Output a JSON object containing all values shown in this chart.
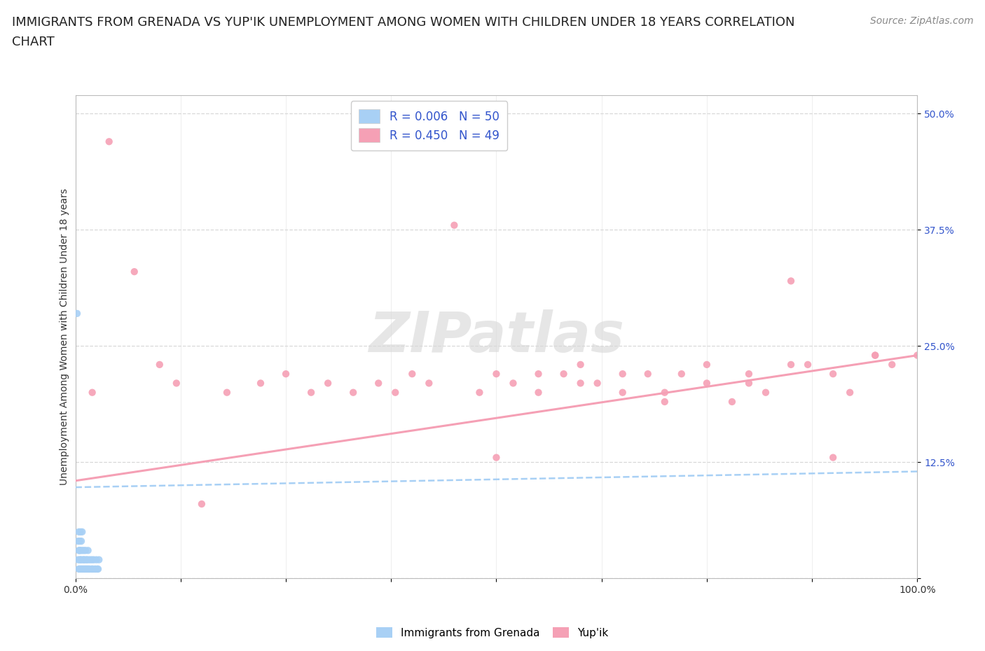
{
  "title_line1": "IMMIGRANTS FROM GRENADA VS YUP'IK UNEMPLOYMENT AMONG WOMEN WITH CHILDREN UNDER 18 YEARS CORRELATION",
  "title_line2": "CHART",
  "source": "Source: ZipAtlas.com",
  "ylabel": "Unemployment Among Women with Children Under 18 years",
  "xlim": [
    0.0,
    1.0
  ],
  "ylim": [
    0.0,
    0.52
  ],
  "yticks": [
    0.0,
    0.125,
    0.25,
    0.375,
    0.5
  ],
  "ytick_labels": [
    "",
    "12.5%",
    "25.0%",
    "37.5%",
    "50.0%"
  ],
  "xticks": [
    0.0,
    0.125,
    0.25,
    0.375,
    0.5,
    0.625,
    0.75,
    0.875,
    1.0
  ],
  "xtick_labels": [
    "0.0%",
    "",
    "",
    "",
    "",
    "",
    "",
    "",
    "100.0%"
  ],
  "blue_color": "#A8D0F5",
  "pink_color": "#F5A0B5",
  "legend_R1": "R = 0.006",
  "legend_N1": "N = 50",
  "legend_R2": "R = 0.450",
  "legend_N2": "N = 49",
  "watermark": "ZIPatlas",
  "background_color": "#ffffff",
  "grid_color": "#d8d8d8",
  "blue_scatter_x": [
    0.002,
    0.003,
    0.003,
    0.004,
    0.004,
    0.004,
    0.005,
    0.005,
    0.005,
    0.005,
    0.006,
    0.006,
    0.006,
    0.006,
    0.007,
    0.007,
    0.007,
    0.008,
    0.008,
    0.008,
    0.009,
    0.009,
    0.01,
    0.01,
    0.01,
    0.011,
    0.011,
    0.012,
    0.012,
    0.013,
    0.013,
    0.014,
    0.014,
    0.015,
    0.015,
    0.016,
    0.016,
    0.017,
    0.018,
    0.019,
    0.02,
    0.02,
    0.021,
    0.022,
    0.023,
    0.024,
    0.025,
    0.026,
    0.027,
    0.028
  ],
  "blue_scatter_y": [
    0.285,
    0.02,
    0.04,
    0.01,
    0.03,
    0.05,
    0.01,
    0.02,
    0.03,
    0.04,
    0.01,
    0.02,
    0.03,
    0.05,
    0.01,
    0.02,
    0.04,
    0.01,
    0.03,
    0.05,
    0.01,
    0.02,
    0.01,
    0.02,
    0.03,
    0.01,
    0.02,
    0.01,
    0.03,
    0.01,
    0.02,
    0.01,
    0.02,
    0.01,
    0.03,
    0.01,
    0.02,
    0.01,
    0.02,
    0.01,
    0.01,
    0.02,
    0.01,
    0.02,
    0.01,
    0.01,
    0.02,
    0.01,
    0.01,
    0.02
  ],
  "pink_scatter_x": [
    0.02,
    0.04,
    0.07,
    0.1,
    0.12,
    0.15,
    0.18,
    0.22,
    0.25,
    0.28,
    0.3,
    0.33,
    0.36,
    0.38,
    0.4,
    0.42,
    0.45,
    0.48,
    0.5,
    0.52,
    0.55,
    0.58,
    0.6,
    0.62,
    0.65,
    0.68,
    0.7,
    0.72,
    0.75,
    0.78,
    0.8,
    0.82,
    0.85,
    0.87,
    0.9,
    0.92,
    0.95,
    0.97,
    1.0,
    0.5,
    0.55,
    0.6,
    0.65,
    0.7,
    0.75,
    0.8,
    0.85,
    0.9,
    0.95
  ],
  "pink_scatter_y": [
    0.2,
    0.47,
    0.33,
    0.23,
    0.21,
    0.08,
    0.2,
    0.21,
    0.22,
    0.2,
    0.21,
    0.2,
    0.21,
    0.2,
    0.22,
    0.21,
    0.38,
    0.2,
    0.13,
    0.21,
    0.2,
    0.22,
    0.23,
    0.21,
    0.2,
    0.22,
    0.19,
    0.22,
    0.21,
    0.19,
    0.22,
    0.2,
    0.32,
    0.23,
    0.22,
    0.2,
    0.24,
    0.23,
    0.24,
    0.22,
    0.22,
    0.21,
    0.22,
    0.2,
    0.23,
    0.21,
    0.23,
    0.13,
    0.24
  ],
  "blue_trend_x": [
    0.0,
    1.0
  ],
  "blue_trend_y": [
    0.098,
    0.115
  ],
  "pink_trend_x": [
    0.0,
    1.0
  ],
  "pink_trend_y": [
    0.105,
    0.24
  ],
  "title_fontsize": 13,
  "source_fontsize": 10,
  "axis_label_fontsize": 10,
  "tick_fontsize": 10,
  "legend_fontsize": 12
}
